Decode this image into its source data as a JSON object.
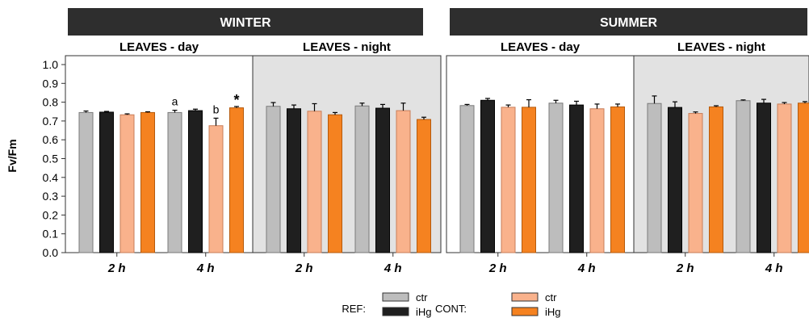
{
  "season_headers": [
    "WINTER",
    "SUMMER"
  ],
  "y_axis": {
    "label": "Fv/Fm",
    "min": 0,
    "max": 1.0,
    "step": 0.1,
    "ticks": [
      "0.0",
      "0.1",
      "0.2",
      "0.3",
      "0.4",
      "0.5",
      "0.6",
      "0.7",
      "0.8",
      "0.9",
      "1.0"
    ]
  },
  "legend": {
    "groups": [
      {
        "label": "REF:",
        "items": [
          {
            "name": "ctr",
            "color": "#bdbdbd"
          },
          {
            "name": "iHg",
            "color": "#1f1f1f"
          }
        ]
      },
      {
        "label": "CONT:",
        "items": [
          {
            "name": "ctr",
            "color": "#f9b28c"
          },
          {
            "name": "iHg",
            "color": "#f58220"
          }
        ]
      }
    ]
  },
  "chart_data": [
    {
      "type": "bar",
      "season": "WINTER",
      "title": "LEAVES - day",
      "shaded": false,
      "categories": [
        "2 h",
        "4 h"
      ],
      "series": [
        {
          "name": "REF ctr",
          "values": [
            0.745,
            0.745
          ],
          "errors": [
            0.008,
            0.012
          ]
        },
        {
          "name": "REF iHg",
          "values": [
            0.747,
            0.755
          ],
          "errors": [
            0.004,
            0.008
          ]
        },
        {
          "name": "CONT ctr",
          "values": [
            0.733,
            0.675
          ],
          "errors": [
            0.005,
            0.04
          ]
        },
        {
          "name": "CONT iHg",
          "values": [
            0.745,
            0.77
          ],
          "errors": [
            0.004,
            0.007
          ]
        }
      ],
      "annotations": [
        {
          "category": "4 h",
          "series": "REF ctr",
          "text": "a"
        },
        {
          "category": "4 h",
          "series": "CONT ctr",
          "text": "b"
        },
        {
          "category": "4 h",
          "series": "CONT iHg",
          "text": "*"
        }
      ]
    },
    {
      "type": "bar",
      "season": "WINTER",
      "title": "LEAVES - night",
      "shaded": true,
      "categories": [
        "2 h",
        "4 h"
      ],
      "series": [
        {
          "name": "REF ctr",
          "values": [
            0.778,
            0.78
          ],
          "errors": [
            0.02,
            0.015
          ]
        },
        {
          "name": "REF iHg",
          "values": [
            0.765,
            0.768
          ],
          "errors": [
            0.02,
            0.02
          ]
        },
        {
          "name": "CONT ctr",
          "values": [
            0.752,
            0.755
          ],
          "errors": [
            0.04,
            0.04
          ]
        },
        {
          "name": "CONT iHg",
          "values": [
            0.733,
            0.708
          ],
          "errors": [
            0.012,
            0.012
          ]
        }
      ],
      "annotations": []
    },
    {
      "type": "bar",
      "season": "SUMMER",
      "title": "LEAVES - day",
      "shaded": false,
      "categories": [
        "2 h",
        "4 h"
      ],
      "series": [
        {
          "name": "REF ctr",
          "values": [
            0.782,
            0.795
          ],
          "errors": [
            0.006,
            0.015
          ]
        },
        {
          "name": "REF iHg",
          "values": [
            0.81,
            0.785
          ],
          "errors": [
            0.01,
            0.02
          ]
        },
        {
          "name": "CONT ctr",
          "values": [
            0.773,
            0.765
          ],
          "errors": [
            0.012,
            0.025
          ]
        },
        {
          "name": "CONT iHg",
          "values": [
            0.773,
            0.775
          ],
          "errors": [
            0.04,
            0.015
          ]
        }
      ],
      "annotations": []
    },
    {
      "type": "bar",
      "season": "SUMMER",
      "title": "LEAVES - night",
      "shaded": true,
      "categories": [
        "2 h",
        "4 h"
      ],
      "series": [
        {
          "name": "REF ctr",
          "values": [
            0.793,
            0.808
          ],
          "errors": [
            0.04,
            0.004
          ]
        },
        {
          "name": "REF iHg",
          "values": [
            0.772,
            0.795
          ],
          "errors": [
            0.03,
            0.02
          ]
        },
        {
          "name": "CONT ctr",
          "values": [
            0.74,
            0.79
          ],
          "errors": [
            0.008,
            0.008
          ]
        },
        {
          "name": "CONT iHg",
          "values": [
            0.775,
            0.795
          ],
          "errors": [
            0.006,
            0.008
          ]
        }
      ],
      "annotations": []
    }
  ]
}
